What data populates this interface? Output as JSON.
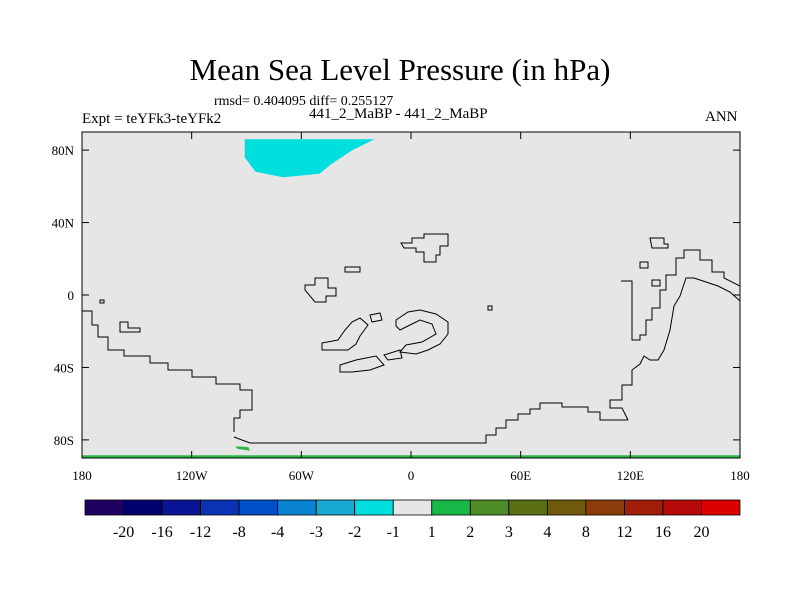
{
  "chart_data": {
    "type": "heatmap",
    "title": "Mean Sea Level Pressure (in hPa)",
    "stats_text": "rmsd= 0.404095 diff= 0.255127",
    "left_label": "Expt = teYFk3-teYFk2",
    "center_label": "441_2_MaBP - 441_2_MaBP",
    "right_label": "ANN",
    "xlim": [
      -180,
      180
    ],
    "ylim": [
      -90,
      90
    ],
    "x_ticks": [
      {
        "value": -180,
        "label": "180"
      },
      {
        "value": -120,
        "label": "120W"
      },
      {
        "value": -60,
        "label": "60W"
      },
      {
        "value": 0,
        "label": "0"
      },
      {
        "value": 60,
        "label": "60E"
      },
      {
        "value": 120,
        "label": "120E"
      },
      {
        "value": 180,
        "label": "180"
      }
    ],
    "y_ticks": [
      {
        "value": 80,
        "label": "80N"
      },
      {
        "value": 40,
        "label": "40N"
      },
      {
        "value": 0,
        "label": "0"
      },
      {
        "value": -40,
        "label": "40S"
      },
      {
        "value": -80,
        "label": "80S"
      }
    ],
    "background_color": "#e6e6e6",
    "regions": [
      {
        "name": "negative-anomaly-arctic",
        "bin": "-2 to -1",
        "color": "#00dede",
        "points": [
          [
            -91,
            86
          ],
          [
            -20,
            86
          ],
          [
            -32,
            80
          ],
          [
            -44,
            72
          ],
          [
            -50,
            67
          ],
          [
            -70,
            65
          ],
          [
            -85,
            68
          ],
          [
            -91,
            76
          ]
        ]
      },
      {
        "name": "positive-anomaly-antarctic",
        "bin": "1 to 2",
        "color": "#2eb84a",
        "points": [
          [
            -180,
            -88.5
          ],
          [
            180,
            -88.5
          ],
          [
            180,
            -90
          ],
          [
            -180,
            -90
          ]
        ]
      },
      {
        "name": "positive-anomaly-small",
        "bin": "1 to 2",
        "color": "#2eb84a",
        "points": [
          [
            -96,
            -83.5
          ],
          [
            -89,
            -84
          ],
          [
            -88,
            -86
          ],
          [
            -95,
            -85
          ]
        ]
      }
    ],
    "colorbar": {
      "labels": [
        "-20",
        "-16",
        "-12",
        "-8",
        "-4",
        "-3",
        "-2",
        "-1",
        "1",
        "2",
        "3",
        "4",
        "8",
        "12",
        "16",
        "20"
      ],
      "colors": [
        "#200060",
        "#00006e",
        "#0a1496",
        "#0a32b4",
        "#0050c8",
        "#0a82d2",
        "#18aad2",
        "#00dede",
        "#e6e6e6",
        "#18b848",
        "#4e8c28",
        "#5a6e14",
        "#6e5a0a",
        "#8c3c0a",
        "#a01e0a",
        "#b40a0a",
        "#dc0000"
      ]
    }
  }
}
